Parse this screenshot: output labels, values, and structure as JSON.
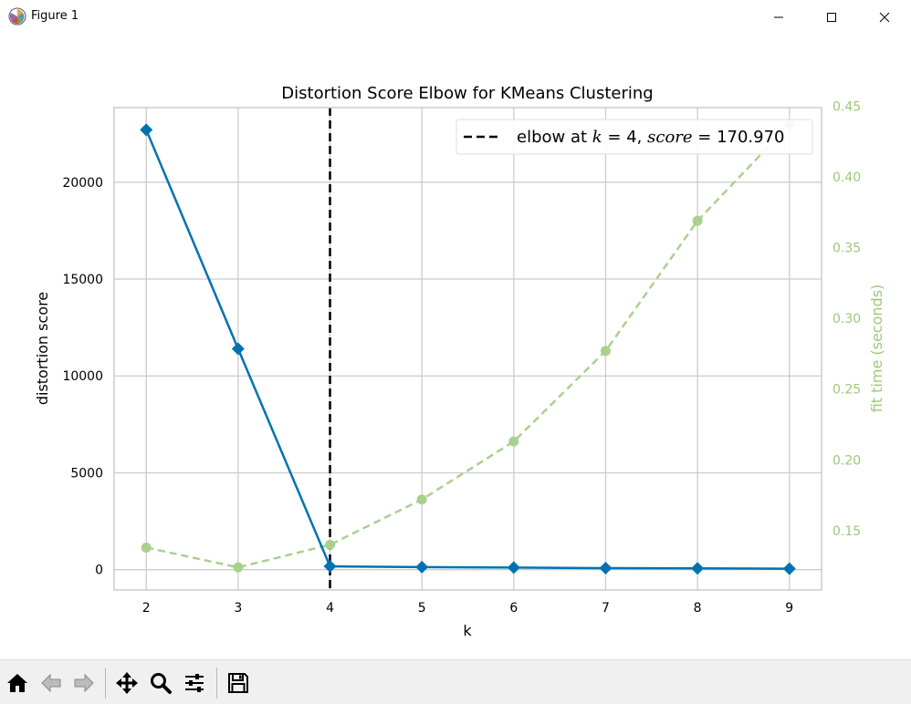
{
  "window": {
    "title": "Figure 1",
    "controls": [
      "minimize",
      "maximize",
      "close"
    ]
  },
  "toolbar": {
    "buttons": [
      {
        "name": "home",
        "icon": "home-icon"
      },
      {
        "name": "back",
        "icon": "arrow-left-icon"
      },
      {
        "name": "forward",
        "icon": "arrow-right-icon"
      },
      {
        "name": "pan",
        "icon": "move-icon"
      },
      {
        "name": "zoom",
        "icon": "magnifier-icon"
      },
      {
        "name": "configure-subplots",
        "icon": "sliders-icon"
      },
      {
        "name": "save",
        "icon": "floppy-disk-icon"
      }
    ]
  },
  "chart_data": {
    "type": "line",
    "title": "Distortion Score Elbow for KMeans Clustering",
    "xlabel": "k",
    "ylabel": "distortion score",
    "y2label": "fit time (seconds)",
    "x": [
      2,
      3,
      4,
      5,
      6,
      7,
      8,
      9
    ],
    "xlim": [
      1.65,
      9.35
    ],
    "ylim": [
      -1050,
      23850
    ],
    "y2lim": [
      0.108,
      0.449
    ],
    "yticks": [
      0,
      5000,
      10000,
      15000,
      20000
    ],
    "y2ticks": [
      0.15,
      0.2,
      0.25,
      0.3,
      0.35,
      0.4,
      0.45
    ],
    "y2tick_labels": [
      "0.15",
      "0.20",
      "0.25",
      "0.30",
      "0.35",
      "0.40",
      "0.45"
    ],
    "grid": true,
    "series": [
      {
        "key": "distortion",
        "axis": "left",
        "values": [
          22700,
          11400,
          171,
          130,
          110,
          80,
          65,
          50
        ],
        "color": "#1f77b4",
        "line_color": "#0072b2",
        "marker": "diamond"
      },
      {
        "key": "fit_time",
        "axis": "right",
        "values": [
          0.138,
          0.124,
          0.14,
          0.172,
          0.213,
          0.277,
          0.369,
          0.437
        ],
        "color": "#a9d18e",
        "line_style": "dashed",
        "marker": "circle"
      }
    ],
    "elbow": {
      "x": 4,
      "legend_prefix": "elbow at ",
      "legend_k": "k",
      "legend_k_value": " = 4, ",
      "legend_score": "score",
      "legend_score_value": " = 170.970"
    },
    "legend_position": "top-right",
    "colors": {
      "grid": "#cccccc",
      "axis_text": "#000000",
      "right_axis_text": "#9dc878",
      "elbow_line": "#000000"
    }
  }
}
